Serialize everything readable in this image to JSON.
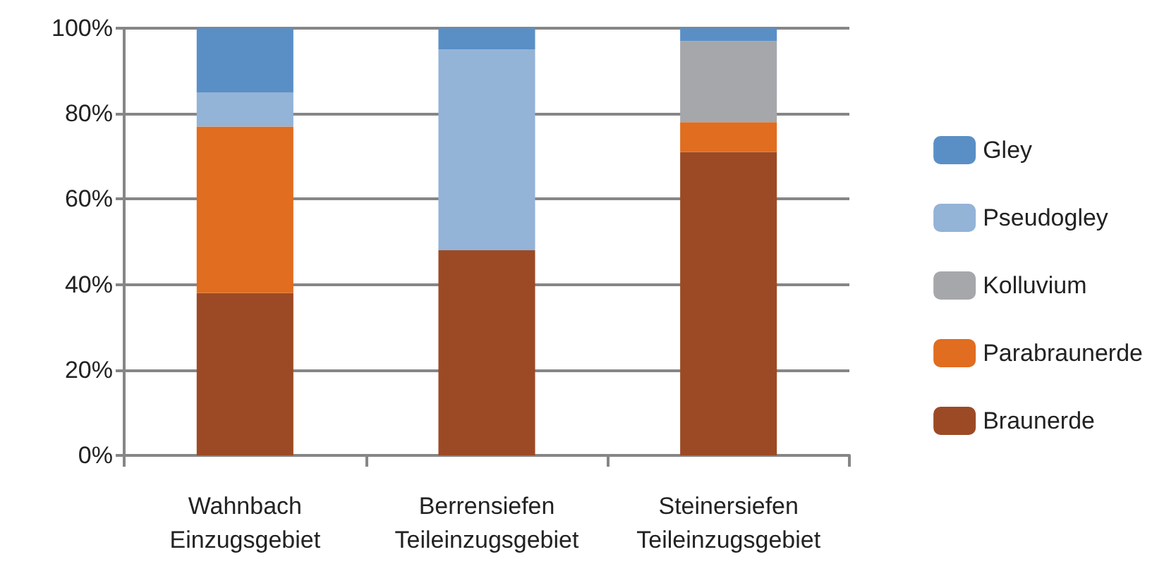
{
  "chart_data": {
    "type": "bar",
    "stacked": true,
    "categories": [
      "Wahnbach\nEinzugsgebiet",
      "Berrensiefen\nTeileinzugsgebiet",
      "Steinersiefen\nTeileinzugsgebiet"
    ],
    "series": [
      {
        "name": "Braunerde",
        "color": "#9c4a25",
        "values": [
          38,
          48,
          71
        ]
      },
      {
        "name": "Parabraunerde",
        "color": "#e06d20",
        "values": [
          39,
          null,
          7
        ]
      },
      {
        "name": "Kolluvium",
        "color": "#a5a7aa",
        "values": [
          null,
          null,
          19
        ]
      },
      {
        "name": "Pseudogley",
        "color": "#93b3d7",
        "values": [
          8,
          47,
          null
        ]
      },
      {
        "name": "Gley",
        "color": "#5a8fc6",
        "values": [
          15,
          5,
          3
        ]
      }
    ],
    "ylim": [
      0,
      100
    ],
    "yticks": [
      {
        "value": 0,
        "label": "0%"
      },
      {
        "value": 20,
        "label": "20%"
      },
      {
        "value": 40,
        "label": "40%"
      },
      {
        "value": 60,
        "label": "60%"
      },
      {
        "value": 80,
        "label": "80%"
      },
      {
        "value": 100,
        "label": "100%"
      }
    ],
    "grid": "y",
    "legend": "right"
  }
}
